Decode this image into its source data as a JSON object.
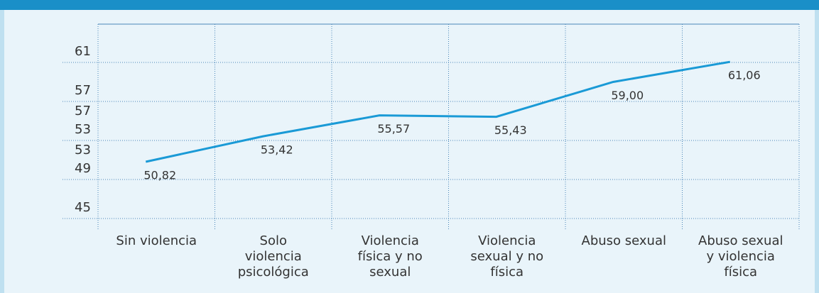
{
  "chart_data": {
    "type": "line",
    "categories": [
      "Sin violencia",
      "Solo violencia psicológica",
      "Violencia física y no sexual",
      "Violencia sexual y no física",
      "Abuso sexual",
      "Abuso sexual y violencia física"
    ],
    "series": [
      {
        "color": "#1a9ad6",
        "values": [
          50.82,
          53.42,
          55.57,
          55.43,
          59.0,
          61.06
        ],
        "value_labels": [
          "50,82",
          "53,42",
          "55,57",
          "55,43",
          "59,00",
          "61,06"
        ]
      }
    ],
    "ylim": [
      45,
      61
    ],
    "yticks": [
      45,
      49,
      53,
      57,
      61
    ],
    "ytick_labels_below": [
      57,
      53
    ],
    "grid": true
  }
}
